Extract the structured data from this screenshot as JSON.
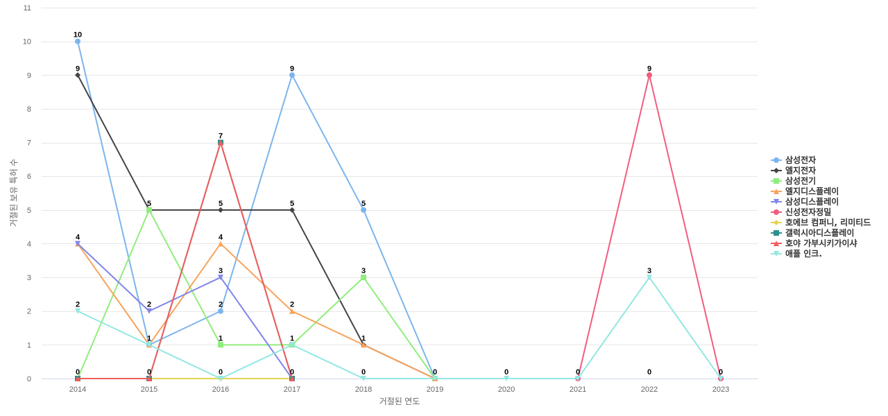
{
  "chart_data": {
    "type": "line",
    "xlabel": "거절된 연도",
    "ylabel": "거절된 보유 특허 수",
    "ylim": [
      0,
      11
    ],
    "yticks": [
      0,
      1,
      2,
      3,
      4,
      5,
      6,
      7,
      8,
      9,
      10,
      11
    ],
    "x": [
      "2014",
      "2015",
      "2016",
      "2017",
      "2018",
      "2019",
      "2020",
      "2021",
      "2022",
      "2023"
    ],
    "grid": true,
    "legend_position": "right",
    "series": [
      {
        "name": "삼성전자",
        "color": "#7cb5ec",
        "marker": "circle",
        "values": [
          10,
          1,
          2,
          9,
          5,
          0,
          null,
          null,
          null,
          null
        ]
      },
      {
        "name": "엘지전자",
        "color": "#434348",
        "marker": "diamond",
        "values": [
          9,
          5,
          5,
          5,
          1,
          0,
          null,
          null,
          null,
          null
        ]
      },
      {
        "name": "삼성전기",
        "color": "#90ed7d",
        "marker": "square",
        "values": [
          0,
          5,
          1,
          1,
          3,
          0,
          null,
          null,
          null,
          null
        ]
      },
      {
        "name": "엘지디스플레이",
        "color": "#f7a35c",
        "marker": "triangle",
        "values": [
          4,
          1,
          4,
          2,
          1,
          0,
          null,
          null,
          null,
          null
        ]
      },
      {
        "name": "삼성디스플레이",
        "color": "#8085e9",
        "marker": "triangle-down",
        "values": [
          4,
          2,
          3,
          0,
          null,
          null,
          null,
          null,
          null,
          null
        ]
      },
      {
        "name": "신성전자정밀",
        "color": "#f15c80",
        "marker": "circle",
        "values": [
          null,
          null,
          null,
          null,
          null,
          null,
          null,
          0,
          9,
          0
        ]
      },
      {
        "name": "호에브 컴퍼니, 리미티드",
        "color": "#e4d354",
        "marker": "diamond",
        "values": [
          0,
          0,
          0,
          0,
          null,
          null,
          null,
          null,
          null,
          null
        ]
      },
      {
        "name": "갤럭시아디스플레이",
        "color": "#2b908f",
        "marker": "square",
        "values": [
          0,
          0,
          7,
          0,
          null,
          null,
          null,
          null,
          null,
          null
        ]
      },
      {
        "name": "호야 가부시키가이샤",
        "color": "#f45b5b",
        "marker": "triangle",
        "values": [
          0,
          0,
          7,
          0,
          null,
          null,
          null,
          null,
          null,
          null
        ]
      },
      {
        "name": "애플 인크.",
        "color": "#91e8e1",
        "marker": "triangle-down",
        "values": [
          2,
          1,
          0,
          1,
          0,
          0,
          0,
          0,
          3,
          0
        ]
      }
    ],
    "data_labels": [
      {
        "x": "2014",
        "y": 10,
        "text": "10"
      },
      {
        "x": "2014",
        "y": 9,
        "text": "9"
      },
      {
        "x": "2014",
        "y": 4,
        "text": "4"
      },
      {
        "x": "2014",
        "y": 2,
        "text": "2"
      },
      {
        "x": "2014",
        "y": 0,
        "text": "0"
      },
      {
        "x": "2015",
        "y": 5,
        "text": "5"
      },
      {
        "x": "2015",
        "y": 2,
        "text": "2"
      },
      {
        "x": "2015",
        "y": 1,
        "text": "1"
      },
      {
        "x": "2015",
        "y": 0,
        "text": "0"
      },
      {
        "x": "2016",
        "y": 7,
        "text": "7"
      },
      {
        "x": "2016",
        "y": 5,
        "text": "5"
      },
      {
        "x": "2016",
        "y": 4,
        "text": "4"
      },
      {
        "x": "2016",
        "y": 3,
        "text": "3"
      },
      {
        "x": "2016",
        "y": 2,
        "text": "2"
      },
      {
        "x": "2016",
        "y": 1,
        "text": "1"
      },
      {
        "x": "2016",
        "y": 0,
        "text": "0"
      },
      {
        "x": "2017",
        "y": 9,
        "text": "9"
      },
      {
        "x": "2017",
        "y": 5,
        "text": "5"
      },
      {
        "x": "2017",
        "y": 2,
        "text": "2"
      },
      {
        "x": "2017",
        "y": 1,
        "text": "1"
      },
      {
        "x": "2017",
        "y": 0,
        "text": "0"
      },
      {
        "x": "2018",
        "y": 5,
        "text": "5"
      },
      {
        "x": "2018",
        "y": 3,
        "text": "3"
      },
      {
        "x": "2018",
        "y": 1,
        "text": "1"
      },
      {
        "x": "2018",
        "y": 0,
        "text": "0"
      },
      {
        "x": "2019",
        "y": 0,
        "text": "0"
      },
      {
        "x": "2020",
        "y": 0,
        "text": "0"
      },
      {
        "x": "2021",
        "y": 0,
        "text": "0"
      },
      {
        "x": "2022",
        "y": 9,
        "text": "9"
      },
      {
        "x": "2022",
        "y": 3,
        "text": "3"
      },
      {
        "x": "2022",
        "y": 0,
        "text": "0"
      },
      {
        "x": "2023",
        "y": 0,
        "text": "0"
      }
    ]
  }
}
